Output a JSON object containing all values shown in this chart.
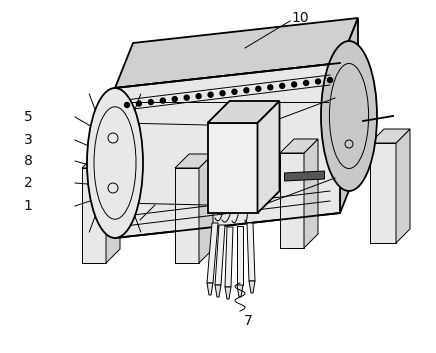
{
  "background_color": "#ffffff",
  "line_color": "#000000",
  "lw_main": 1.3,
  "lw_thin": 0.7,
  "label_fontsize": 10,
  "fig_width": 4.36,
  "fig_height": 3.53,
  "dpi": 100,
  "body_face_color": "#e8e8e8",
  "body_top_color": "#d0d0d0",
  "body_side_color": "#c8c8c8",
  "leg_face_color": "#e0e0e0",
  "leg_side_color": "#cccccc",
  "box_face_color": "#f0f0f0",
  "box_top_color": "#d8d8d8",
  "box_side_color": "#e0e0e0"
}
